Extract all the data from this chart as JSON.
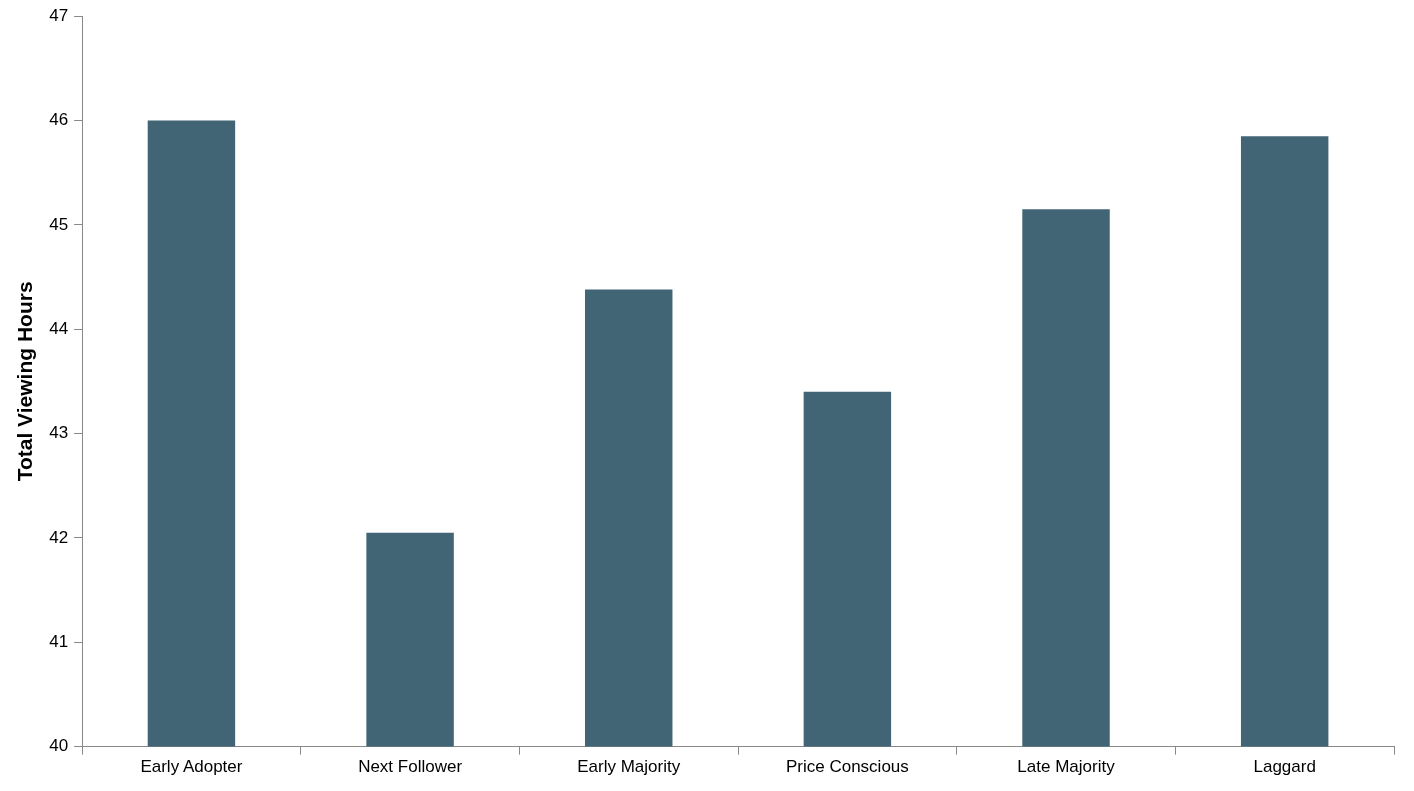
{
  "chart_data": {
    "type": "bar",
    "ylabel": "Total Viewing Hours",
    "categories": [
      "Early Adopter",
      "Next Follower",
      "Early Majority",
      "Price Conscious",
      "Late Majority",
      "Laggard"
    ],
    "values": [
      46.0,
      42.05,
      44.38,
      43.4,
      45.15,
      45.85
    ],
    "color": "#416574",
    "ylim": [
      40,
      47
    ],
    "yticks": [
      40,
      41,
      42,
      43,
      44,
      45,
      46,
      47
    ],
    "grid": false,
    "legend": false
  }
}
